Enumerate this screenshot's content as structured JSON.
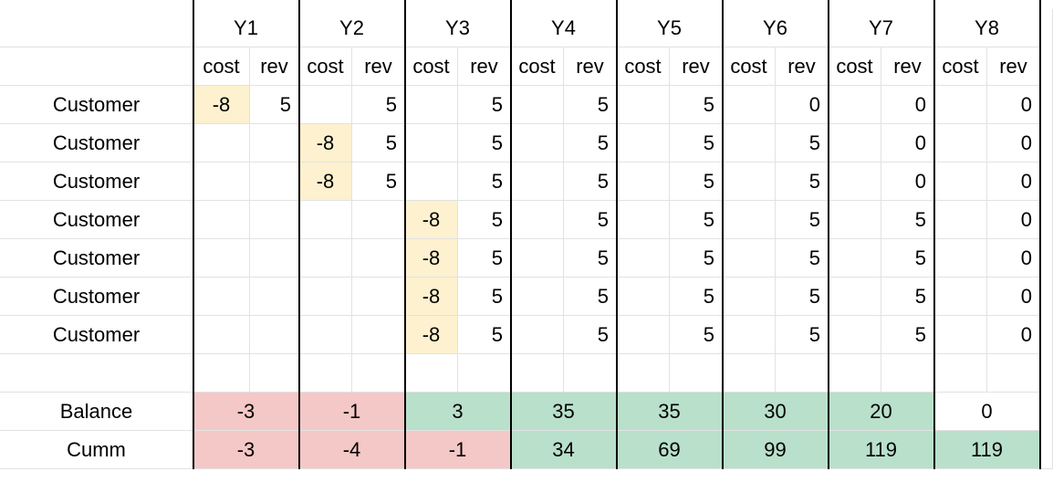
{
  "colors": {
    "highlight_cost": "#fdf1cf",
    "negative": "#f4c8c6",
    "positive": "#b9e0cb",
    "gridline": "#e2e2e2",
    "divider": "#000000"
  },
  "years": [
    "Y1",
    "Y2",
    "Y3",
    "Y4",
    "Y5",
    "Y6",
    "Y7",
    "Y8"
  ],
  "subheaders": {
    "cost": "cost",
    "rev": "rev"
  },
  "customers": [
    {
      "label": "Customer",
      "cells": [
        "-8",
        "5",
        "",
        "5",
        "",
        "5",
        "",
        "5",
        "",
        "5",
        "",
        "0",
        "",
        "0",
        "",
        "0"
      ]
    },
    {
      "label": "Customer",
      "cells": [
        "",
        "",
        "-8",
        "5",
        "",
        "5",
        "",
        "5",
        "",
        "5",
        "",
        "5",
        "",
        "0",
        "",
        "0"
      ]
    },
    {
      "label": "Customer",
      "cells": [
        "",
        "",
        "-8",
        "5",
        "",
        "5",
        "",
        "5",
        "",
        "5",
        "",
        "5",
        "",
        "0",
        "",
        "0"
      ]
    },
    {
      "label": "Customer",
      "cells": [
        "",
        "",
        "",
        "",
        "-8",
        "5",
        "",
        "5",
        "",
        "5",
        "",
        "5",
        "",
        "5",
        "",
        "0"
      ]
    },
    {
      "label": "Customer",
      "cells": [
        "",
        "",
        "",
        "",
        "-8",
        "5",
        "",
        "5",
        "",
        "5",
        "",
        "5",
        "",
        "5",
        "",
        "0"
      ]
    },
    {
      "label": "Customer",
      "cells": [
        "",
        "",
        "",
        "",
        "-8",
        "5",
        "",
        "5",
        "",
        "5",
        "",
        "5",
        "",
        "5",
        "",
        "0"
      ]
    },
    {
      "label": "Customer",
      "cells": [
        "",
        "",
        "",
        "",
        "-8",
        "5",
        "",
        "5",
        "",
        "5",
        "",
        "5",
        "",
        "5",
        "",
        "0"
      ]
    }
  ],
  "balance": {
    "label": "Balance",
    "values": [
      "-3",
      "-1",
      "3",
      "35",
      "35",
      "30",
      "20",
      "0"
    ],
    "status": [
      "negative",
      "negative",
      "positive",
      "positive",
      "positive",
      "positive",
      "positive",
      "none"
    ]
  },
  "cumm": {
    "label": "Cumm",
    "values": [
      "-3",
      "-4",
      "-1",
      "34",
      "69",
      "99",
      "119",
      "119"
    ],
    "status": [
      "negative",
      "negative",
      "negative",
      "positive",
      "positive",
      "positive",
      "positive",
      "positive"
    ]
  }
}
